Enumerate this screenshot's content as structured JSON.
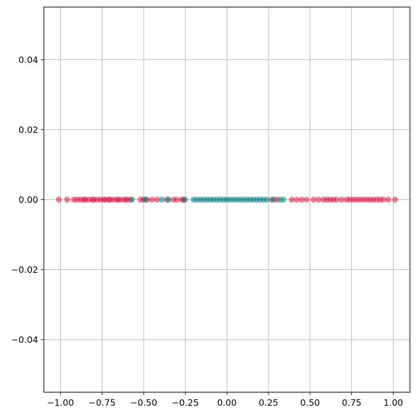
{
  "chart_data": {
    "type": "scatter",
    "xlim": [
      -1.1,
      1.1
    ],
    "ylim": [
      -0.055,
      0.055
    ],
    "grid": true,
    "x_ticks": [
      -1.0,
      -0.75,
      -0.5,
      -0.25,
      0.0,
      0.25,
      0.5,
      0.75,
      1.0
    ],
    "x_tick_labels": [
      "−1.00",
      "−0.75",
      "−0.50",
      "−0.25",
      "0.00",
      "0.25",
      "0.50",
      "0.75",
      "1.00"
    ],
    "y_ticks": [
      -0.04,
      -0.02,
      0.0,
      0.02,
      0.04
    ],
    "y_tick_labels": [
      "−0.04",
      "−0.02",
      "0.00",
      "0.02",
      "0.04"
    ],
    "series": [
      {
        "color": "#dc143c",
        "x": [
          -1.01,
          -0.96,
          -0.92,
          -0.9,
          -0.88,
          -0.86,
          -0.85,
          -0.83,
          -0.81,
          -0.8,
          -0.78,
          -0.76,
          -0.74,
          -0.73,
          -0.71,
          -0.7,
          -0.68,
          -0.66,
          -0.65,
          -0.63,
          -0.61,
          -0.6,
          -0.58,
          -0.52,
          -0.5,
          -0.48,
          -0.45,
          -0.42,
          -0.36,
          -0.32,
          -0.3,
          -0.27,
          -0.26,
          0.27,
          0.3,
          0.39,
          0.42,
          0.45,
          0.48,
          0.52,
          0.55,
          0.58,
          0.6,
          0.62,
          0.64,
          0.66,
          0.69,
          0.72,
          0.74,
          0.76,
          0.78,
          0.8,
          0.82,
          0.84,
          0.86,
          0.88,
          0.9,
          0.92,
          0.94,
          0.97,
          1.01
        ],
        "y": [
          0,
          0,
          0,
          0,
          0,
          0,
          0,
          0,
          0,
          0,
          0,
          0,
          0,
          0,
          0,
          0,
          0,
          0,
          0,
          0,
          0,
          0,
          0,
          0,
          0,
          0,
          0,
          0,
          0,
          0,
          0,
          0,
          0,
          0,
          0,
          0,
          0,
          0,
          0,
          0,
          0,
          0,
          0,
          0,
          0,
          0,
          0,
          0,
          0,
          0,
          0,
          0,
          0,
          0,
          0,
          0,
          0,
          0,
          0,
          0,
          0
        ]
      },
      {
        "color": "#008080",
        "x": [
          -0.57,
          -0.49,
          -0.39,
          -0.35,
          -0.25,
          -0.2,
          -0.18,
          -0.16,
          -0.14,
          -0.12,
          -0.1,
          -0.08,
          -0.06,
          -0.04,
          -0.02,
          0.0,
          0.02,
          0.04,
          0.06,
          0.08,
          0.1,
          0.12,
          0.14,
          0.16,
          0.18,
          0.2,
          0.22,
          0.24,
          0.28,
          0.32,
          0.34
        ],
        "y": [
          0,
          0,
          0,
          0,
          0,
          0,
          0,
          0,
          0,
          0,
          0,
          0,
          0,
          0,
          0,
          0,
          0,
          0,
          0,
          0,
          0,
          0,
          0,
          0,
          0,
          0,
          0,
          0,
          0,
          0,
          0
        ]
      }
    ]
  }
}
